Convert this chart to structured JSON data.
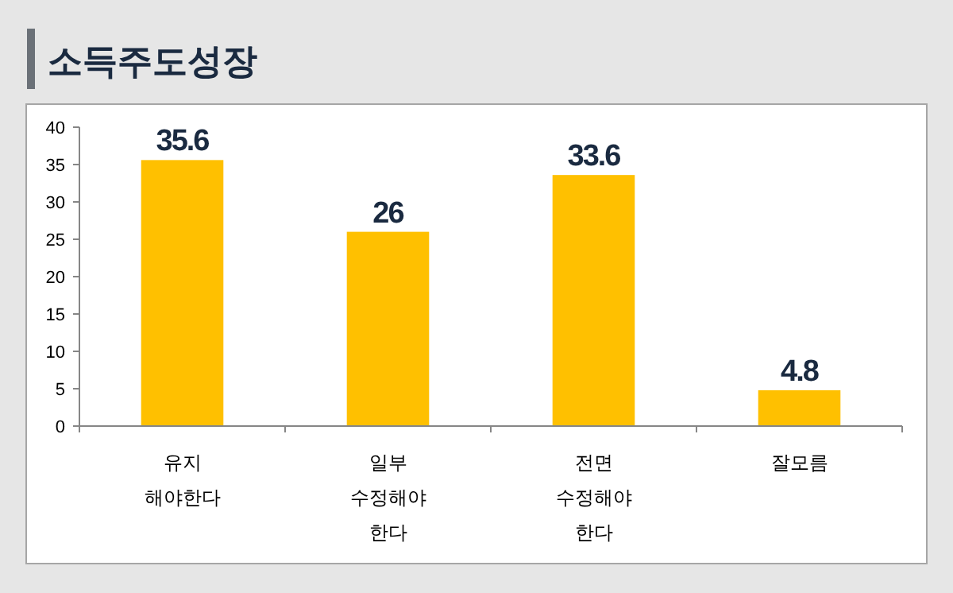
{
  "chart_data": {
    "type": "bar",
    "title": "소득주도성장",
    "categories": [
      "유지 해야한다",
      "일부 수정해야 한다",
      "전면 수정해야 한다",
      "잘모름"
    ],
    "values": [
      35.6,
      26,
      33.6,
      4.8
    ],
    "color": "#ffc000",
    "ylim": [
      0,
      40
    ],
    "yticks": [
      0,
      5,
      10,
      15,
      20,
      25,
      30,
      35,
      40
    ],
    "grid": false,
    "data_labels": true
  }
}
